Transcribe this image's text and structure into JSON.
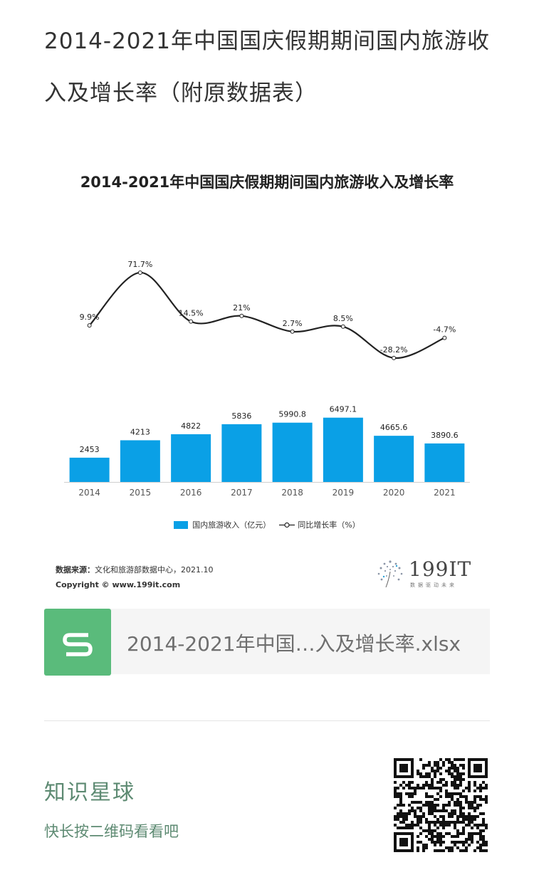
{
  "page": {
    "title": "2014-2021年中国国庆假期期间国内旅游收入及增长率（附原数据表）"
  },
  "chart_data": {
    "type": "bar",
    "title": "2014-2021年中国国庆假期期间国内旅游收入及增长率",
    "categories": [
      "2014",
      "2015",
      "2016",
      "2017",
      "2018",
      "2019",
      "2020",
      "2021"
    ],
    "series": [
      {
        "name": "国内旅游收入（亿元）",
        "type": "bar",
        "color": "#0aa0e6",
        "values": [
          2453,
          4213,
          4822,
          5836,
          5990.8,
          6497.1,
          4665.6,
          3890.6
        ],
        "labels": [
          "2453",
          "4213",
          "4822",
          "5836",
          "5990.8",
          "6497.1",
          "4665.6",
          "3890.6"
        ]
      },
      {
        "name": "同比增长率（%）",
        "type": "line",
        "color": "#222222",
        "values": [
          9.9,
          71.7,
          14.5,
          21,
          2.7,
          8.5,
          -28.2,
          -4.7
        ],
        "labels": [
          "9.9%",
          "71.7%",
          "14.5%",
          "21%",
          "2.7%",
          "8.5%",
          "-28.2%",
          "-4.7%"
        ]
      }
    ],
    "ylim_bar": [
      0,
      8000
    ],
    "ylim_line": [
      -40,
      80
    ],
    "legend_position": "bottom",
    "grid": false
  },
  "source": {
    "label": "数据来源：",
    "text": "文化和旅游部数据中心，2021.10",
    "copyright": "Copyright ©   www.199it.com"
  },
  "brand": {
    "name": "199IT",
    "tagline": "数据驱动未来"
  },
  "file": {
    "name": "2014-2021年中国…入及增长率.xlsx",
    "icon": "spreadsheet-s-icon"
  },
  "planet": {
    "name": "知识星球",
    "hint": "快长按二维码看看吧",
    "qr_icon": "qr-code-icon"
  }
}
